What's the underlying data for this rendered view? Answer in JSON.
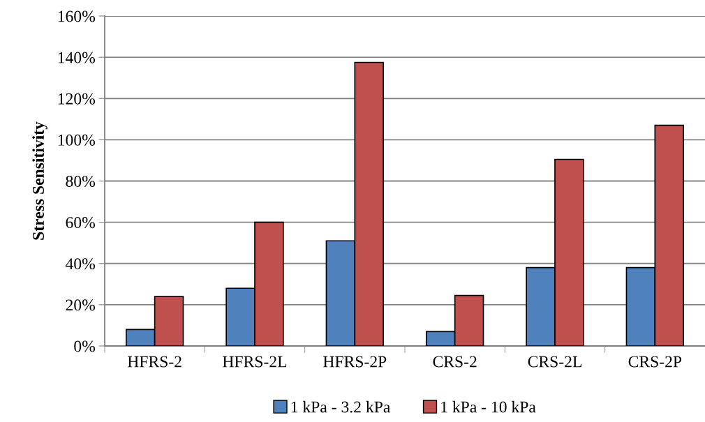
{
  "chart_data": {
    "type": "bar",
    "ylabel": "Stress Sensitivity",
    "categories": [
      "HFRS-2",
      "HFRS-2L",
      "HFRS-2P",
      "CRS-2",
      "CRS-2L",
      "CRS-2P"
    ],
    "series": [
      {
        "name": "1 kPa - 3.2 kPa",
        "color": "#4f81bd",
        "values": [
          8,
          28,
          51,
          7,
          38,
          38
        ]
      },
      {
        "name": "1 kPa - 10 kPa",
        "color": "#c0504d",
        "values": [
          24,
          60,
          137.5,
          24.5,
          90.5,
          107
        ]
      }
    ],
    "ylim": [
      0,
      160
    ],
    "yticks": [
      {
        "value": 0,
        "label": "0%"
      },
      {
        "value": 20,
        "label": "20%"
      },
      {
        "value": 40,
        "label": "40%"
      },
      {
        "value": 60,
        "label": "60%"
      },
      {
        "value": 80,
        "label": "80%"
      },
      {
        "value": 100,
        "label": "100%"
      },
      {
        "value": 120,
        "label": "120%"
      },
      {
        "value": 140,
        "label": "140%"
      },
      {
        "value": 160,
        "label": "160%"
      }
    ],
    "grid": "y",
    "legend": "bottom"
  }
}
